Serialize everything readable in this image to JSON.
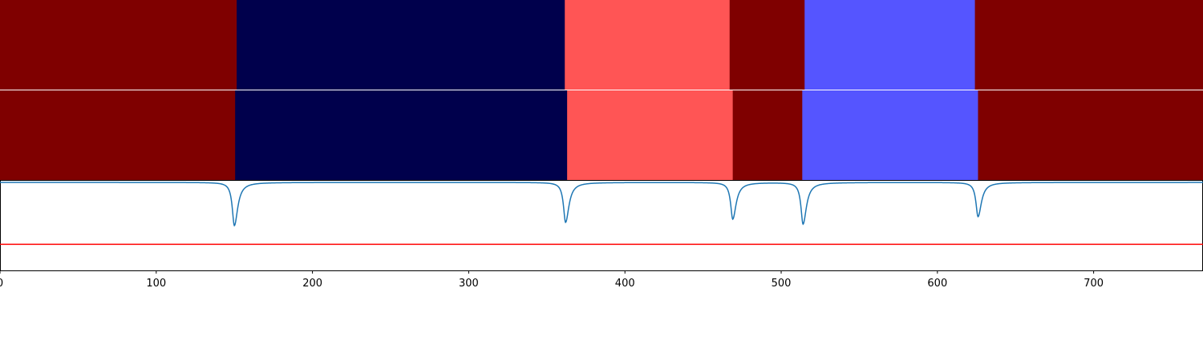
{
  "chart_data": [
    {
      "type": "heatmap",
      "title": "",
      "xlim": [
        0,
        770
      ],
      "segments": [
        {
          "start": 0,
          "end": 151.5,
          "color": "#7f0000"
        },
        {
          "start": 151.5,
          "end": 361.5,
          "color": "#00004c"
        },
        {
          "start": 361.5,
          "end": 467,
          "color": "#ff5555"
        },
        {
          "start": 467,
          "end": 515,
          "color": "#7f0000"
        },
        {
          "start": 515,
          "end": 624,
          "color": "#5555ff"
        },
        {
          "start": 624,
          "end": 770,
          "color": "#7f0000"
        }
      ]
    },
    {
      "type": "heatmap",
      "title": "",
      "xlim": [
        0,
        770
      ],
      "segments": [
        {
          "start": 0,
          "end": 150.5,
          "color": "#7f0000"
        },
        {
          "start": 150.5,
          "end": 363,
          "color": "#00004c"
        },
        {
          "start": 363,
          "end": 469,
          "color": "#ff5555"
        },
        {
          "start": 469,
          "end": 513.5,
          "color": "#7f0000"
        },
        {
          "start": 513.5,
          "end": 626,
          "color": "#5555ff"
        },
        {
          "start": 626,
          "end": 770,
          "color": "#7f0000"
        }
      ]
    },
    {
      "type": "line",
      "title": "",
      "xlabel": "",
      "ylabel": "",
      "xlim": [
        0,
        770
      ],
      "ylim": [
        -1.0,
        0.1
      ],
      "xticks": [
        0,
        100,
        200,
        300,
        400,
        500,
        600,
        700
      ],
      "threshold": {
        "value": -0.68,
        "color": "#ff0000"
      },
      "series": [
        {
          "color": "#1f77b4",
          "baseline": 0.08,
          "dips": [
            {
              "x": 150,
              "depth": -0.45
            },
            {
              "x": 362,
              "depth": -0.41
            },
            {
              "x": 469,
              "depth": -0.37
            },
            {
              "x": 514,
              "depth": -0.43
            },
            {
              "x": 626,
              "depth": -0.34
            }
          ]
        }
      ]
    }
  ]
}
